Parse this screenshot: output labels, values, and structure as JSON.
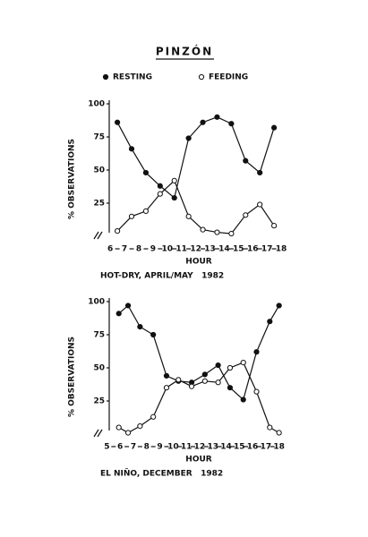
{
  "title": "PINZÓN",
  "chart_data": [
    {
      "type": "line",
      "x_label": "HOUR",
      "y_label": "% OBSERVATIONS",
      "caption": "HOT-DRY, APRIL/MAY   1982",
      "xlim": [
        5.3,
        18.5
      ],
      "xticks": [
        6,
        7,
        8,
        9,
        10,
        11,
        12,
        13,
        14,
        15,
        16,
        17,
        18
      ],
      "ylim": [
        0,
        100
      ],
      "yticks": [
        25,
        50,
        75,
        100
      ],
      "x": [
        6.5,
        7.5,
        8.5,
        9.5,
        10.5,
        11.5,
        12.5,
        13.5,
        14.5,
        15.5,
        16.5,
        17.5
      ],
      "series": [
        {
          "name": "RESTING",
          "color": "#111111",
          "marker": "filled",
          "values": [
            86,
            66,
            48,
            38,
            29,
            74,
            86,
            90,
            85,
            57,
            48,
            82
          ]
        },
        {
          "name": "FEEDING",
          "color": "#111111",
          "marker": "open",
          "values": [
            4,
            15,
            19,
            32,
            42,
            15,
            5,
            3,
            2,
            16,
            24,
            8
          ]
        }
      ]
    },
    {
      "type": "line",
      "x_label": "HOUR",
      "y_label": "% OBSERVATIONS",
      "caption": "EL NIÑO, DECEMBER   1982",
      "xlim": [
        4.5,
        18.7
      ],
      "xticks": [
        5,
        6,
        7,
        8,
        9,
        10,
        11,
        12,
        13,
        14,
        15,
        16,
        17,
        18
      ],
      "ylim": [
        0,
        100
      ],
      "yticks": [
        25,
        50,
        75,
        100
      ],
      "x": [
        5.9,
        6.6,
        7.5,
        8.5,
        9.5,
        10.4,
        11.4,
        12.4,
        13.4,
        14.3,
        15.3,
        16.3,
        17.3,
        18.0
      ],
      "series": [
        {
          "color": "#111111",
          "marker": "filled",
          "values": [
            91,
            97,
            81,
            75,
            44,
            40,
            39,
            45,
            52,
            35,
            26,
            62,
            85,
            97
          ]
        },
        {
          "color": "#111111",
          "marker": "open",
          "values": [
            5,
            1,
            6,
            13,
            35,
            41,
            36,
            40,
            39,
            50,
            54,
            32,
            5,
            1
          ]
        }
      ]
    }
  ]
}
